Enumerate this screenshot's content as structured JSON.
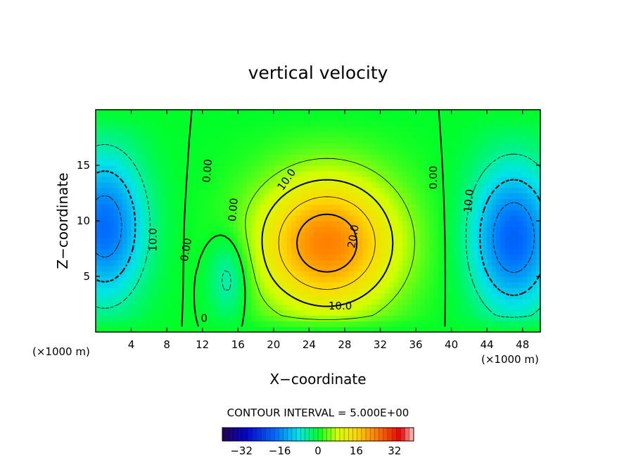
{
  "chart_data": {
    "type": "contour",
    "title": "vertical velocity",
    "xlabel": "X−coordinate",
    "ylabel": "Z−coordinate",
    "x_units": "(×1000 m)",
    "y_units": "(×1000 m)",
    "xlim": [
      0,
      50
    ],
    "ylim": [
      0,
      20
    ],
    "x_ticks": [
      4,
      8,
      12,
      16,
      20,
      24,
      28,
      32,
      36,
      40,
      44,
      48
    ],
    "y_ticks": [
      5,
      10,
      15
    ],
    "contour_interval_text": "CONTOUR INTERVAL = 5.000E+00",
    "contour_interval": 5.0,
    "colorbar": {
      "min": -40,
      "max": 40,
      "ticks": [
        -32,
        -16,
        0,
        16,
        32
      ]
    },
    "features": [
      {
        "name": "updraft",
        "x": 26,
        "z": 8,
        "value": 24
      },
      {
        "name": "left downdraft",
        "x": 1,
        "z": 9.5,
        "value": -18
      },
      {
        "name": "right downdraft",
        "x": 47,
        "z": 8.5,
        "value": -19
      },
      {
        "name": "middle downdraft",
        "x": 15,
        "z": 5,
        "value": -8
      }
    ],
    "contour_labels": [
      {
        "text": "10.0",
        "x": 21.5,
        "z": 13.7,
        "angle": -55
      },
      {
        "text": "10.0",
        "x": 27.5,
        "z": 2.3,
        "angle": 0
      },
      {
        "text": "20.0",
        "x": 29.0,
        "z": 8.6,
        "angle": -80
      },
      {
        "text": "0.00",
        "x": 12.6,
        "z": 14.5,
        "angle": -85
      },
      {
        "text": "0.00",
        "x": 15.5,
        "z": 11.0,
        "angle": -85
      },
      {
        "text": "0.00",
        "x": 10.2,
        "z": 7.4,
        "angle": -80
      },
      {
        "text": "0.00",
        "x": 38.0,
        "z": 13.9,
        "angle": -90
      },
      {
        "text": "10.0",
        "x": 6.5,
        "z": 8.3,
        "angle": -90
      },
      {
        "text": "10.0",
        "x": 42.0,
        "z": 11.8,
        "angle": -85
      },
      {
        "text": "0",
        "x": 12.2,
        "z": 1.2,
        "angle": 0
      }
    ]
  }
}
